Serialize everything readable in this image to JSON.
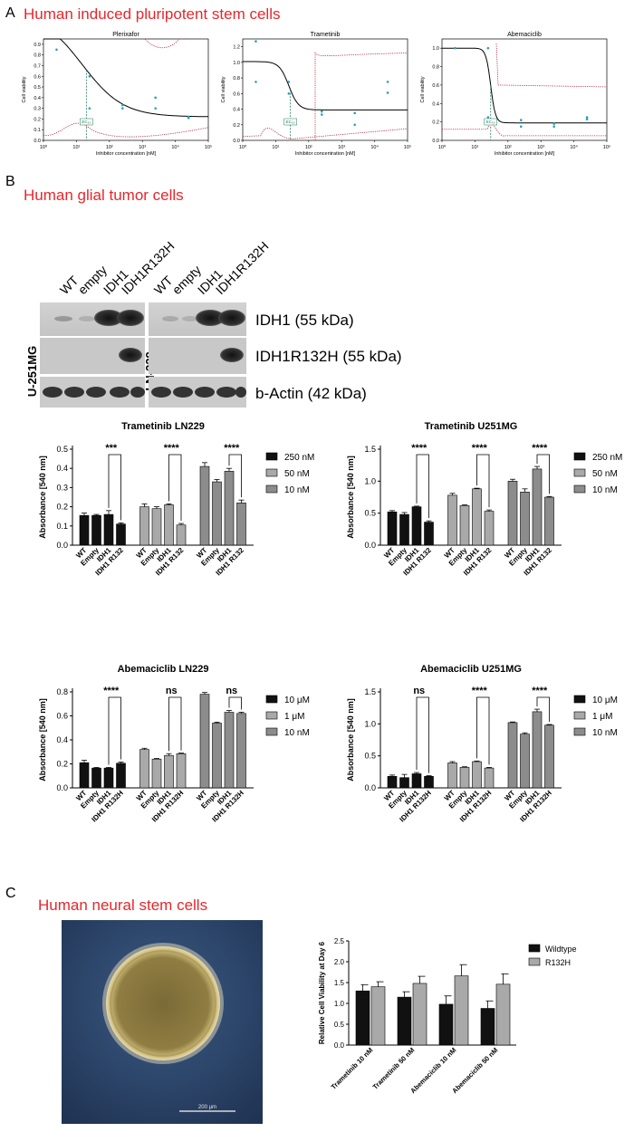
{
  "panels": {
    "A": {
      "letter": "A",
      "title": "Human induced pluripotent stem cells"
    },
    "B": {
      "letter": "B",
      "title": "Human glial tumor cells"
    },
    "C": {
      "letter": "C",
      "title": "Human neural stem cells"
    }
  },
  "blot": {
    "lanes": [
      "WT",
      "empty",
      "IDH1",
      "IDH1R132H"
    ],
    "cell_lines": [
      "U-251MG",
      "LN-229"
    ],
    "bands": [
      "IDH1 (55 kDa)",
      "IDH1R132H (55 kDa)",
      "b-Actin (42 kDa)"
    ]
  },
  "micrograph": {
    "scale_bar": "200 μm"
  },
  "chart_data": [
    {
      "id": "A1",
      "type": "scatter",
      "title": "Plerixafor",
      "xlabel": "Inhibitor concentration [nM]",
      "ylabel": "Cell viability",
      "x_scale": "log",
      "xlim": [
        1,
        100000
      ],
      "ylim": [
        0,
        0.95
      ],
      "xticks": [
        "10⁰",
        "10¹",
        "10²",
        "10³",
        "10⁴",
        "10⁵"
      ],
      "yticks": [
        "0.0",
        "0.1",
        "0.2",
        "0.3",
        "0.4",
        "0.5",
        "0.6",
        "0.7",
        "0.8",
        "0.9"
      ],
      "points": [
        [
          2.5,
          0.85
        ],
        [
          25,
          0.6
        ],
        [
          25,
          0.3
        ],
        [
          250,
          0.33
        ],
        [
          250,
          0.3
        ],
        [
          2500,
          0.4
        ],
        [
          2500,
          0.3
        ],
        [
          25000,
          0.21
        ],
        [
          25000,
          0.22
        ]
      ],
      "fit": {
        "top": 1.2,
        "bottom": 0.22,
        "ec50": 15,
        "hill": 0.7
      },
      "ec50_label": "EC₅₀",
      "ec50_x": 20
    },
    {
      "id": "A2",
      "type": "scatter",
      "title": "Trametinib",
      "xlabel": "Inhibitor concentration [nM]",
      "ylabel": "Cell viability",
      "x_scale": "log",
      "xlim": [
        1,
        100000
      ],
      "ylim": [
        0,
        1.3
      ],
      "xticks": [
        "10⁰",
        "10¹",
        "10²",
        "10³",
        "10⁴",
        "10⁵"
      ],
      "yticks": [
        "0.0",
        "0.2",
        "0.4",
        "0.6",
        "0.8",
        "1.0",
        "1.2"
      ],
      "points": [
        [
          2.5,
          1.27
        ],
        [
          2.5,
          0.75
        ],
        [
          25,
          0.75
        ],
        [
          25,
          0.6
        ],
        [
          250,
          0.37
        ],
        [
          250,
          0.33
        ],
        [
          2500,
          0.35
        ],
        [
          2500,
          0.2
        ],
        [
          25000,
          0.75
        ],
        [
          25000,
          0.61
        ]
      ],
      "fit": {
        "top": 1.01,
        "bottom": 0.39,
        "ec50": 25,
        "hill": 3
      },
      "ec50_label": "EC₅₀",
      "ec50_x": 28
    },
    {
      "id": "A3",
      "type": "scatter",
      "title": "Abemaciclib",
      "xlabel": "Inhibitor concentration [nM]",
      "ylabel": "Cell viability",
      "x_scale": "log",
      "xlim": [
        1,
        100000
      ],
      "ylim": [
        0,
        1.1
      ],
      "xticks": [
        "10⁰",
        "10¹",
        "10²",
        "10³",
        "10⁴",
        "10⁵"
      ],
      "yticks": [
        "0.0",
        "0.2",
        "0.4",
        "0.6",
        "0.8",
        "1.0"
      ],
      "points": [
        [
          2.5,
          1.0
        ],
        [
          25,
          1.0
        ],
        [
          25,
          0.25
        ],
        [
          250,
          0.22
        ],
        [
          250,
          0.15
        ],
        [
          2500,
          0.18
        ],
        [
          2500,
          0.15
        ],
        [
          25000,
          0.25
        ],
        [
          25000,
          0.23
        ]
      ],
      "fit": {
        "top": 1.0,
        "bottom": 0.19,
        "ec50": 30,
        "hill": 6
      },
      "ec50_label": "EC₅₀",
      "ec50_x": 30
    },
    {
      "id": "B1",
      "type": "bar",
      "title": "Trametinib LN229",
      "ylabel": "Absorbance [540 nm]",
      "ylim": [
        0,
        0.5
      ],
      "yticks": [
        "0.0",
        "0.1",
        "0.2",
        "0.3",
        "0.4",
        "0.5"
      ],
      "categories": [
        "WT",
        "Empty",
        "IDH1",
        "IDH1 R132"
      ],
      "series": [
        {
          "name": "250 nM",
          "color": "#111111",
          "values": [
            0.155,
            0.155,
            0.16,
            0.11
          ],
          "errors": [
            0.012,
            0.005,
            0.02,
            0.006
          ]
        },
        {
          "name": "50 nM",
          "color": "#a9a9a9",
          "values": [
            0.2,
            0.19,
            0.21,
            0.105
          ],
          "errors": [
            0.015,
            0.01,
            0.005,
            0.008
          ]
        },
        {
          "name": "10 nM",
          "color": "#8c8c8c",
          "values": [
            0.41,
            0.33,
            0.385,
            0.22
          ],
          "errors": [
            0.02,
            0.012,
            0.015,
            0.015
          ]
        }
      ],
      "significance": [
        "***",
        "****",
        "****"
      ]
    },
    {
      "id": "B2",
      "type": "bar",
      "title": "Trametinib U251MG",
      "ylabel": "Absorbance [540 nm]",
      "ylim": [
        0,
        1.5
      ],
      "yticks": [
        "0.0",
        "0.5",
        "1.0",
        "1.5"
      ],
      "categories": [
        "WT",
        "Empty",
        "IDH1",
        "IDH1 R132"
      ],
      "series": [
        {
          "name": "250 nM",
          "color": "#111111",
          "values": [
            0.52,
            0.48,
            0.6,
            0.36
          ],
          "errors": [
            0.02,
            0.03,
            0.01,
            0.02
          ]
        },
        {
          "name": "50 nM",
          "color": "#a9a9a9",
          "values": [
            0.78,
            0.62,
            0.88,
            0.53
          ],
          "errors": [
            0.03,
            0.01,
            0.01,
            0.02
          ]
        },
        {
          "name": "10 nM",
          "color": "#8c8c8c",
          "values": [
            1.0,
            0.83,
            1.19,
            0.75
          ],
          "errors": [
            0.03,
            0.05,
            0.04,
            0.01
          ]
        }
      ],
      "significance": [
        "****",
        "****",
        "****"
      ]
    },
    {
      "id": "B3",
      "type": "bar",
      "title": "Abemaciclib LN229",
      "ylabel": "Absorbance [540 nm]",
      "ylim": [
        0,
        0.8
      ],
      "yticks": [
        "0.0",
        "0.2",
        "0.4",
        "0.6",
        "0.8"
      ],
      "categories": [
        "WT",
        "Empty",
        "IDH1",
        "IDH1 R132H"
      ],
      "series": [
        {
          "name": "10 μM",
          "color": "#111111",
          "values": [
            0.21,
            0.165,
            0.165,
            0.205
          ],
          "errors": [
            0.02,
            0.005,
            0.005,
            0.01
          ]
        },
        {
          "name": "1 μM",
          "color": "#a9a9a9",
          "values": [
            0.32,
            0.24,
            0.27,
            0.285
          ],
          "errors": [
            0.01,
            0.005,
            0.015,
            0.005
          ]
        },
        {
          "name": "10 nM",
          "color": "#8c8c8c",
          "values": [
            0.78,
            0.54,
            0.63,
            0.62
          ],
          "errors": [
            0.015,
            0.008,
            0.015,
            0.01
          ]
        }
      ],
      "significance": [
        "****",
        "ns",
        "ns"
      ]
    },
    {
      "id": "B4",
      "type": "bar",
      "title": "Abemaciclib U251MG",
      "ylabel": "Absorbance [540 nm]",
      "ylim": [
        0,
        1.5
      ],
      "yticks": [
        "0.0",
        "0.5",
        "1.0",
        "1.5"
      ],
      "categories": [
        "WT",
        "Empty",
        "IDH1",
        "IDH1 R132H"
      ],
      "series": [
        {
          "name": "10 μM",
          "color": "#111111",
          "values": [
            0.18,
            0.16,
            0.22,
            0.18
          ],
          "errors": [
            0.02,
            0.05,
            0.02,
            0.01
          ]
        },
        {
          "name": "1 μM",
          "color": "#a9a9a9",
          "values": [
            0.39,
            0.32,
            0.41,
            0.31
          ],
          "errors": [
            0.02,
            0.01,
            0.01,
            0.01
          ]
        },
        {
          "name": "10 nM",
          "color": "#8c8c8c",
          "values": [
            1.02,
            0.84,
            1.19,
            0.98
          ],
          "errors": [
            0.01,
            0.02,
            0.04,
            0.01
          ]
        }
      ],
      "significance": [
        "ns",
        "****",
        "****"
      ]
    },
    {
      "id": "C1",
      "type": "bar",
      "title": "",
      "ylabel": "Relative Cell Viability at Day 6",
      "ylim": [
        0,
        2.5
      ],
      "yticks": [
        "0.0",
        "0.5",
        "1.0",
        "1.5",
        "2.0",
        "2.5"
      ],
      "categories": [
        "Trametinib 10 nM",
        "Trametinib 50 nM",
        "Abemaciclib 10 nM",
        "Abemaciclib 50 nM"
      ],
      "series": [
        {
          "name": "Wildtype",
          "color": "#111111",
          "values": [
            1.3,
            1.15,
            0.98,
            0.88
          ],
          "errors": [
            0.15,
            0.13,
            0.2,
            0.18
          ]
        },
        {
          "name": "R132H",
          "color": "#a9a9a9",
          "values": [
            1.4,
            1.48,
            1.66,
            1.46
          ],
          "errors": [
            0.12,
            0.17,
            0.27,
            0.25
          ]
        }
      ]
    }
  ]
}
